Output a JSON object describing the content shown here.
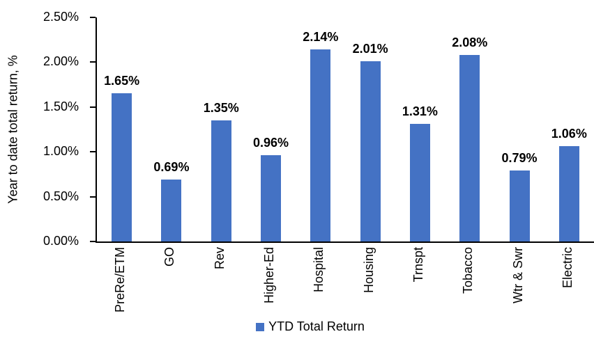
{
  "chart_data": {
    "type": "bar",
    "title": "",
    "categories": [
      "PreRe/ETM",
      "GO",
      "Rev",
      "Higher-Ed",
      "Hospital",
      "Housing",
      "Trnspt",
      "Tobacco",
      "Wtr & Swr",
      "Electric"
    ],
    "values": [
      1.65,
      0.69,
      1.35,
      0.96,
      2.14,
      2.01,
      1.31,
      2.08,
      0.79,
      1.06
    ],
    "data_labels": [
      "1.65%",
      "0.69%",
      "1.35%",
      "0.96%",
      "2.14%",
      "2.01%",
      "1.31%",
      "2.08%",
      "0.79%",
      "1.06%"
    ],
    "series_name": "YTD Total Return",
    "xlabel": "",
    "ylabel": "Year to date total return, %",
    "ylim": [
      0,
      2.5
    ],
    "y_tick_interval": 0.5,
    "y_tick_labels": [
      "0.00%",
      "0.50%",
      "1.00%",
      "1.50%",
      "2.00%",
      "2.50%"
    ],
    "grid": "off",
    "legend_position": "bottom",
    "bar_color": "#4472C4",
    "axis_color": "#000000",
    "label_style": "bold-outside-end"
  }
}
